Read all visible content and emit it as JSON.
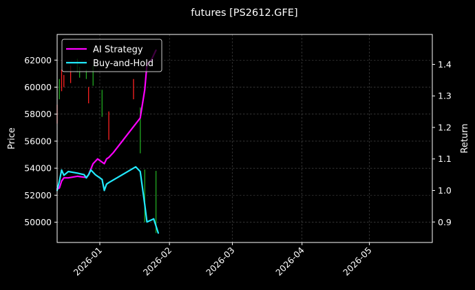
{
  "chart_data": {
    "type": "line",
    "title": "futures [PS2612.GFE]",
    "xlabel": "",
    "ylabel": "Price",
    "y2label": "Return",
    "x_ticks": [
      "2026-01",
      "2026-02",
      "2026-03",
      "2026-04",
      "2026-05"
    ],
    "x_range": [
      "2025-12-13",
      "2026-05-29"
    ],
    "y_ticks": [
      50000,
      52000,
      54000,
      56000,
      58000,
      60000,
      62000
    ],
    "y_range": [
      48500,
      63900
    ],
    "y2_ticks": [
      0.9,
      1.0,
      1.1,
      1.2,
      1.3,
      1.4
    ],
    "y2_range": [
      0.835,
      1.495
    ],
    "grid": true,
    "legend_position": "top-left",
    "colors": {
      "ai_strategy": "#ff00ff",
      "buy_hold": "#22eaff",
      "candle_up": "#22aa22",
      "candle_down": "#ff2222",
      "background": "#000000",
      "axes": "#ffffff",
      "grid": "#555555"
    },
    "candles": [
      {
        "date": "2025-12-13",
        "high": 58700,
        "low": 57300,
        "dir": "down"
      },
      {
        "date": "2025-12-14",
        "high": 60600,
        "low": 59100,
        "dir": "up"
      },
      {
        "date": "2025-12-15",
        "high": 61300,
        "low": 59700,
        "dir": "down"
      },
      {
        "date": "2025-12-16",
        "high": 60900,
        "low": 60000,
        "dir": "down"
      },
      {
        "date": "2025-12-19",
        "high": 61600,
        "low": 60300,
        "dir": "down"
      },
      {
        "date": "2025-12-22",
        "high": 62100,
        "low": 61100,
        "dir": "up"
      },
      {
        "date": "2025-12-23",
        "high": 61500,
        "low": 60700,
        "dir": "up"
      },
      {
        "date": "2025-12-26",
        "high": 61300,
        "low": 60600,
        "dir": "up"
      },
      {
        "date": "2025-12-27",
        "high": 60000,
        "low": 58800,
        "dir": "down"
      },
      {
        "date": "2025-12-29",
        "high": 61600,
        "low": 60100,
        "dir": "up"
      },
      {
        "date": "2026-01-02",
        "high": 59800,
        "low": 57800,
        "dir": "up"
      },
      {
        "date": "2026-01-05",
        "high": 58200,
        "low": 56100,
        "dir": "down"
      },
      {
        "date": "2026-01-16",
        "high": 60600,
        "low": 59100,
        "dir": "down"
      },
      {
        "date": "2026-01-19",
        "high": 58500,
        "low": 55100,
        "dir": "up"
      },
      {
        "date": "2026-01-21",
        "high": 53900,
        "low": 50000,
        "dir": "up"
      },
      {
        "date": "2026-01-26",
        "high": 53800,
        "low": 49200,
        "dir": "up"
      }
    ],
    "series": [
      {
        "name": "AI Strategy",
        "axis": "right",
        "points": [
          [
            "2025-12-13",
            1.005
          ],
          [
            "2025-12-14",
            1.008
          ],
          [
            "2025-12-15",
            1.03
          ],
          [
            "2025-12-16",
            1.04
          ],
          [
            "2025-12-18",
            1.04
          ],
          [
            "2025-12-22",
            1.045
          ],
          [
            "2025-12-25",
            1.042
          ],
          [
            "2025-12-26",
            1.042
          ],
          [
            "2025-12-27",
            1.05
          ],
          [
            "2025-12-29",
            1.085
          ],
          [
            "2025-12-31",
            1.1
          ],
          [
            "2026-01-03",
            1.085
          ],
          [
            "2026-01-04",
            1.1
          ],
          [
            "2026-01-05",
            1.105
          ],
          [
            "2026-01-07",
            1.12
          ],
          [
            "2026-01-19",
            1.23
          ],
          [
            "2026-01-21",
            1.32
          ],
          [
            "2026-01-22",
            1.4
          ],
          [
            "2026-01-24",
            1.415
          ],
          [
            "2026-01-26",
            1.445
          ]
        ]
      },
      {
        "name": "Buy-and-Hold",
        "axis": "right",
        "points": [
          [
            "2025-12-13",
            1.0
          ],
          [
            "2025-12-14",
            1.03
          ],
          [
            "2025-12-15",
            1.065
          ],
          [
            "2025-12-16",
            1.048
          ],
          [
            "2025-12-18",
            1.06
          ],
          [
            "2025-12-22",
            1.055
          ],
          [
            "2025-12-25",
            1.05
          ],
          [
            "2025-12-26",
            1.04
          ],
          [
            "2025-12-27",
            1.05
          ],
          [
            "2025-12-28",
            1.065
          ],
          [
            "2025-12-30",
            1.05
          ],
          [
            "2026-01-02",
            1.035
          ],
          [
            "2026-01-03",
            1.0
          ],
          [
            "2026-01-04",
            1.02
          ],
          [
            "2026-01-05",
            1.025
          ],
          [
            "2026-01-17",
            1.075
          ],
          [
            "2026-01-19",
            1.06
          ],
          [
            "2026-01-21",
            0.955
          ],
          [
            "2026-01-22",
            0.9
          ],
          [
            "2026-01-25",
            0.91
          ],
          [
            "2026-01-27",
            0.865
          ]
        ]
      }
    ]
  }
}
